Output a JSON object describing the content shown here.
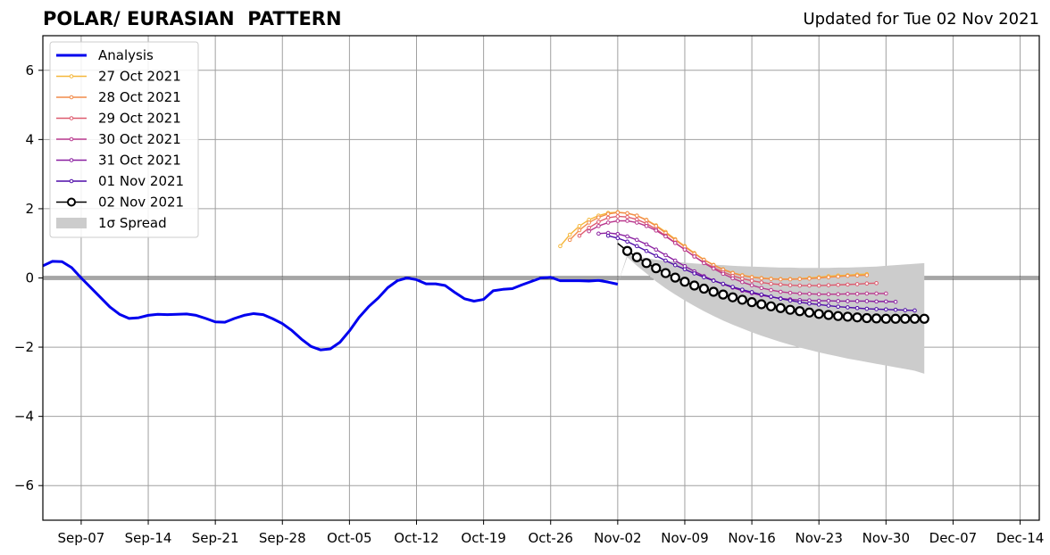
{
  "header": {
    "title": "POLAR/ EURASIAN  PATTERN",
    "updated": "Updated for Tue 02 Nov 2021"
  },
  "chart_data": {
    "type": "line",
    "title": "POLAR/ EURASIAN  PATTERN",
    "xlabel": "",
    "ylabel": "",
    "xlim_day": [
      -2,
      102
    ],
    "ylim": [
      -7,
      7
    ],
    "yticks": [
      -6,
      -4,
      -2,
      0,
      2,
      4,
      6
    ],
    "ytick_labels": [
      "−6",
      "−4",
      "−2",
      "0",
      "2",
      "4",
      "6"
    ],
    "xticks": [
      {
        "day": 2,
        "label": "Sep-07"
      },
      {
        "day": 9,
        "label": "Sep-14"
      },
      {
        "day": 16,
        "label": "Sep-21"
      },
      {
        "day": 23,
        "label": "Sep-28"
      },
      {
        "day": 30,
        "label": "Oct-05"
      },
      {
        "day": 37,
        "label": "Oct-12"
      },
      {
        "day": 44,
        "label": "Oct-19"
      },
      {
        "day": 51,
        "label": "Oct-26"
      },
      {
        "day": 58,
        "label": "Nov-02"
      },
      {
        "day": 65,
        "label": "Nov-09"
      },
      {
        "day": 72,
        "label": "Nov-16"
      },
      {
        "day": 79,
        "label": "Nov-23"
      },
      {
        "day": 86,
        "label": "Nov-30"
      },
      {
        "day": 93,
        "label": "Dec-07"
      },
      {
        "day": 100,
        "label": "Dec-14"
      }
    ],
    "x_day_origin": "Sep-05",
    "grid": true,
    "legend_position": "upper-left",
    "zero_line": true,
    "analysis": {
      "name": "Analysis",
      "color": "#0000ee",
      "x_start_day": -2,
      "values": [
        0.35,
        0.48,
        0.47,
        0.3,
        0.0,
        -0.28,
        -0.56,
        -0.84,
        -1.05,
        -1.17,
        -1.15,
        -1.08,
        -1.05,
        -1.06,
        -1.05,
        -1.04,
        -1.08,
        -1.17,
        -1.27,
        -1.28,
        -1.17,
        -1.08,
        -1.03,
        -1.06,
        -1.18,
        -1.32,
        -1.52,
        -1.77,
        -1.98,
        -2.08,
        -2.05,
        -1.86,
        -1.53,
        -1.14,
        -0.83,
        -0.58,
        -0.28,
        -0.08,
        0.0,
        -0.05,
        -0.17,
        -0.17,
        -0.22,
        -0.42,
        -0.6,
        -0.67,
        -0.62,
        -0.37,
        -0.33,
        -0.31,
        -0.2,
        -0.1,
        0.0,
        0.02,
        -0.08,
        -0.08,
        -0.08,
        -0.09,
        -0.07,
        -0.12,
        -0.18
      ]
    },
    "forecasts": [
      {
        "name": "27 Oct 2021",
        "color": "#f5b73a",
        "x_start_day": 52,
        "values": [
          0.92,
          1.25,
          1.5,
          1.68,
          1.8,
          1.88,
          1.9,
          1.87,
          1.8,
          1.68,
          1.52,
          1.33,
          1.12,
          0.92,
          0.72,
          0.53,
          0.38,
          0.25,
          0.15,
          0.08,
          0.03,
          0.0,
          -0.02,
          -0.03,
          -0.03,
          -0.02,
          0.0,
          0.02,
          0.05,
          0.07,
          0.08,
          0.1,
          0.11
        ]
      },
      {
        "name": "28 Oct 2021",
        "color": "#f28b4a",
        "x_start_day": 53,
        "values": [
          1.1,
          1.38,
          1.6,
          1.75,
          1.85,
          1.89,
          1.87,
          1.8,
          1.67,
          1.5,
          1.3,
          1.1,
          0.9,
          0.7,
          0.52,
          0.37,
          0.24,
          0.14,
          0.07,
          0.02,
          -0.01,
          -0.03,
          -0.04,
          -0.04,
          -0.03,
          -0.02,
          0.0,
          0.02,
          0.04,
          0.06,
          0.07,
          0.08
        ]
      },
      {
        "name": "29 Oct 2021",
        "color": "#de5a6e",
        "x_start_day": 54,
        "values": [
          1.22,
          1.45,
          1.62,
          1.74,
          1.78,
          1.76,
          1.69,
          1.57,
          1.41,
          1.22,
          1.02,
          0.82,
          0.62,
          0.45,
          0.3,
          0.17,
          0.06,
          -0.02,
          -0.08,
          -0.13,
          -0.17,
          -0.19,
          -0.21,
          -0.22,
          -0.22,
          -0.22,
          -0.21,
          -0.2,
          -0.19,
          -0.18,
          -0.16,
          -0.15
        ]
      },
      {
        "name": "30 Oct 2021",
        "color": "#b9388e",
        "x_start_day": 55,
        "values": [
          1.35,
          1.5,
          1.6,
          1.65,
          1.65,
          1.6,
          1.5,
          1.37,
          1.2,
          1.01,
          0.82,
          0.62,
          0.43,
          0.27,
          0.12,
          -0.01,
          -0.12,
          -0.21,
          -0.29,
          -0.35,
          -0.4,
          -0.43,
          -0.45,
          -0.46,
          -0.47,
          -0.47,
          -0.47,
          -0.46,
          -0.46,
          -0.45,
          -0.45,
          -0.45
        ]
      },
      {
        "name": "31 Oct 2021",
        "color": "#8a1fa0",
        "x_start_day": 56,
        "values": [
          1.28,
          1.3,
          1.27,
          1.2,
          1.1,
          0.97,
          0.82,
          0.66,
          0.5,
          0.34,
          0.19,
          0.05,
          -0.07,
          -0.18,
          -0.28,
          -0.37,
          -0.44,
          -0.5,
          -0.55,
          -0.59,
          -0.62,
          -0.64,
          -0.65,
          -0.66,
          -0.66,
          -0.67,
          -0.67,
          -0.67,
          -0.67,
          -0.68,
          -0.68,
          -0.69
        ]
      },
      {
        "name": "01 Nov 2021",
        "color": "#4f0ca8",
        "x_start_day": 57,
        "values": [
          1.22,
          1.15,
          1.05,
          0.92,
          0.78,
          0.64,
          0.5,
          0.37,
          0.25,
          0.13,
          0.02,
          -0.08,
          -0.17,
          -0.26,
          -0.34,
          -0.41,
          -0.48,
          -0.54,
          -0.6,
          -0.65,
          -0.7,
          -0.74,
          -0.77,
          -0.8,
          -0.83,
          -0.85,
          -0.87,
          -0.89,
          -0.9,
          -0.91,
          -0.92,
          -0.93,
          -0.94
        ]
      }
    ],
    "latest_forecast": {
      "name": "02 Nov 2021",
      "color": "#000000",
      "x_start_day": 58,
      "values": [
        1.0,
        0.78,
        0.6,
        0.43,
        0.28,
        0.14,
        0.01,
        -0.11,
        -0.22,
        -0.31,
        -0.4,
        -0.48,
        -0.56,
        -0.63,
        -0.7,
        -0.76,
        -0.82,
        -0.87,
        -0.92,
        -0.96,
        -1.0,
        -1.04,
        -1.07,
        -1.1,
        -1.12,
        -1.14,
        -1.16,
        -1.17,
        -1.18,
        -1.18,
        -1.18,
        -1.18,
        -1.18
      ]
    },
    "spread": {
      "name": "1σ Spread",
      "color": "#cccccc",
      "x_start_day": 58,
      "upper": [
        -0.18,
        0.68,
        0.62,
        0.57,
        0.53,
        0.5,
        0.47,
        0.44,
        0.42,
        0.4,
        0.38,
        0.37,
        0.35,
        0.34,
        0.33,
        0.32,
        0.31,
        0.3,
        0.3,
        0.29,
        0.29,
        0.29,
        0.29,
        0.3,
        0.3,
        0.31,
        0.32,
        0.33,
        0.35,
        0.37,
        0.39,
        0.41,
        0.43
      ],
      "lower": [
        -0.18,
        0.6,
        0.35,
        0.13,
        -0.1,
        -0.3,
        -0.48,
        -0.65,
        -0.81,
        -0.96,
        -1.1,
        -1.23,
        -1.35,
        -1.46,
        -1.57,
        -1.67,
        -1.76,
        -1.85,
        -1.93,
        -2.01,
        -2.08,
        -2.15,
        -2.21,
        -2.27,
        -2.33,
        -2.38,
        -2.43,
        -2.48,
        -2.53,
        -2.58,
        -2.63,
        -2.68,
        -2.77
      ]
    }
  }
}
